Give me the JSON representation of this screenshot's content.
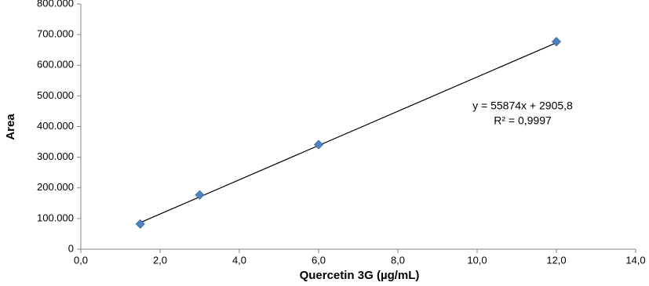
{
  "chart_data": {
    "type": "scatter",
    "x_label": "Quercetin 3G (µg/mL)",
    "y_label": "Area",
    "series": [
      {
        "x": [
          1.5,
          3,
          6,
          12
        ],
        "values": [
          82000,
          177000,
          341000,
          677000
        ],
        "color": "#4f81bd"
      }
    ],
    "trendline": {
      "x": [
        1.5,
        12
      ],
      "values": [
        86717,
        673394
      ],
      "color": "#000000"
    },
    "annotations": [
      "y = 55874x + 2905,8",
      "R² = 0,9997"
    ],
    "xlim": [
      0,
      14
    ],
    "xticks": [
      {
        "value": 0,
        "label": "0,0"
      },
      {
        "value": 2,
        "label": "2,0"
      },
      {
        "value": 4,
        "label": "4,0"
      },
      {
        "value": 6,
        "label": "6,0"
      },
      {
        "value": 8,
        "label": "8,0"
      },
      {
        "value": 10,
        "label": "10,0"
      },
      {
        "value": 12,
        "label": "12,0"
      },
      {
        "value": 14,
        "label": "14,0"
      }
    ],
    "ylim": [
      0,
      800000
    ],
    "yticks": [
      0,
      {
        "value": 100000,
        "label": "100.000"
      },
      {
        "value": 200000,
        "label": "200.000"
      },
      {
        "value": 300000,
        "label": "300.000"
      },
      {
        "value": 400000,
        "label": "400.000"
      },
      {
        "value": 500000,
        "label": "500.000"
      },
      {
        "value": 600000,
        "label": "600.000"
      },
      {
        "value": 700000,
        "label": "700.000"
      },
      {
        "value": 800000,
        "label": "800.000"
      }
    ],
    "grid": false
  }
}
